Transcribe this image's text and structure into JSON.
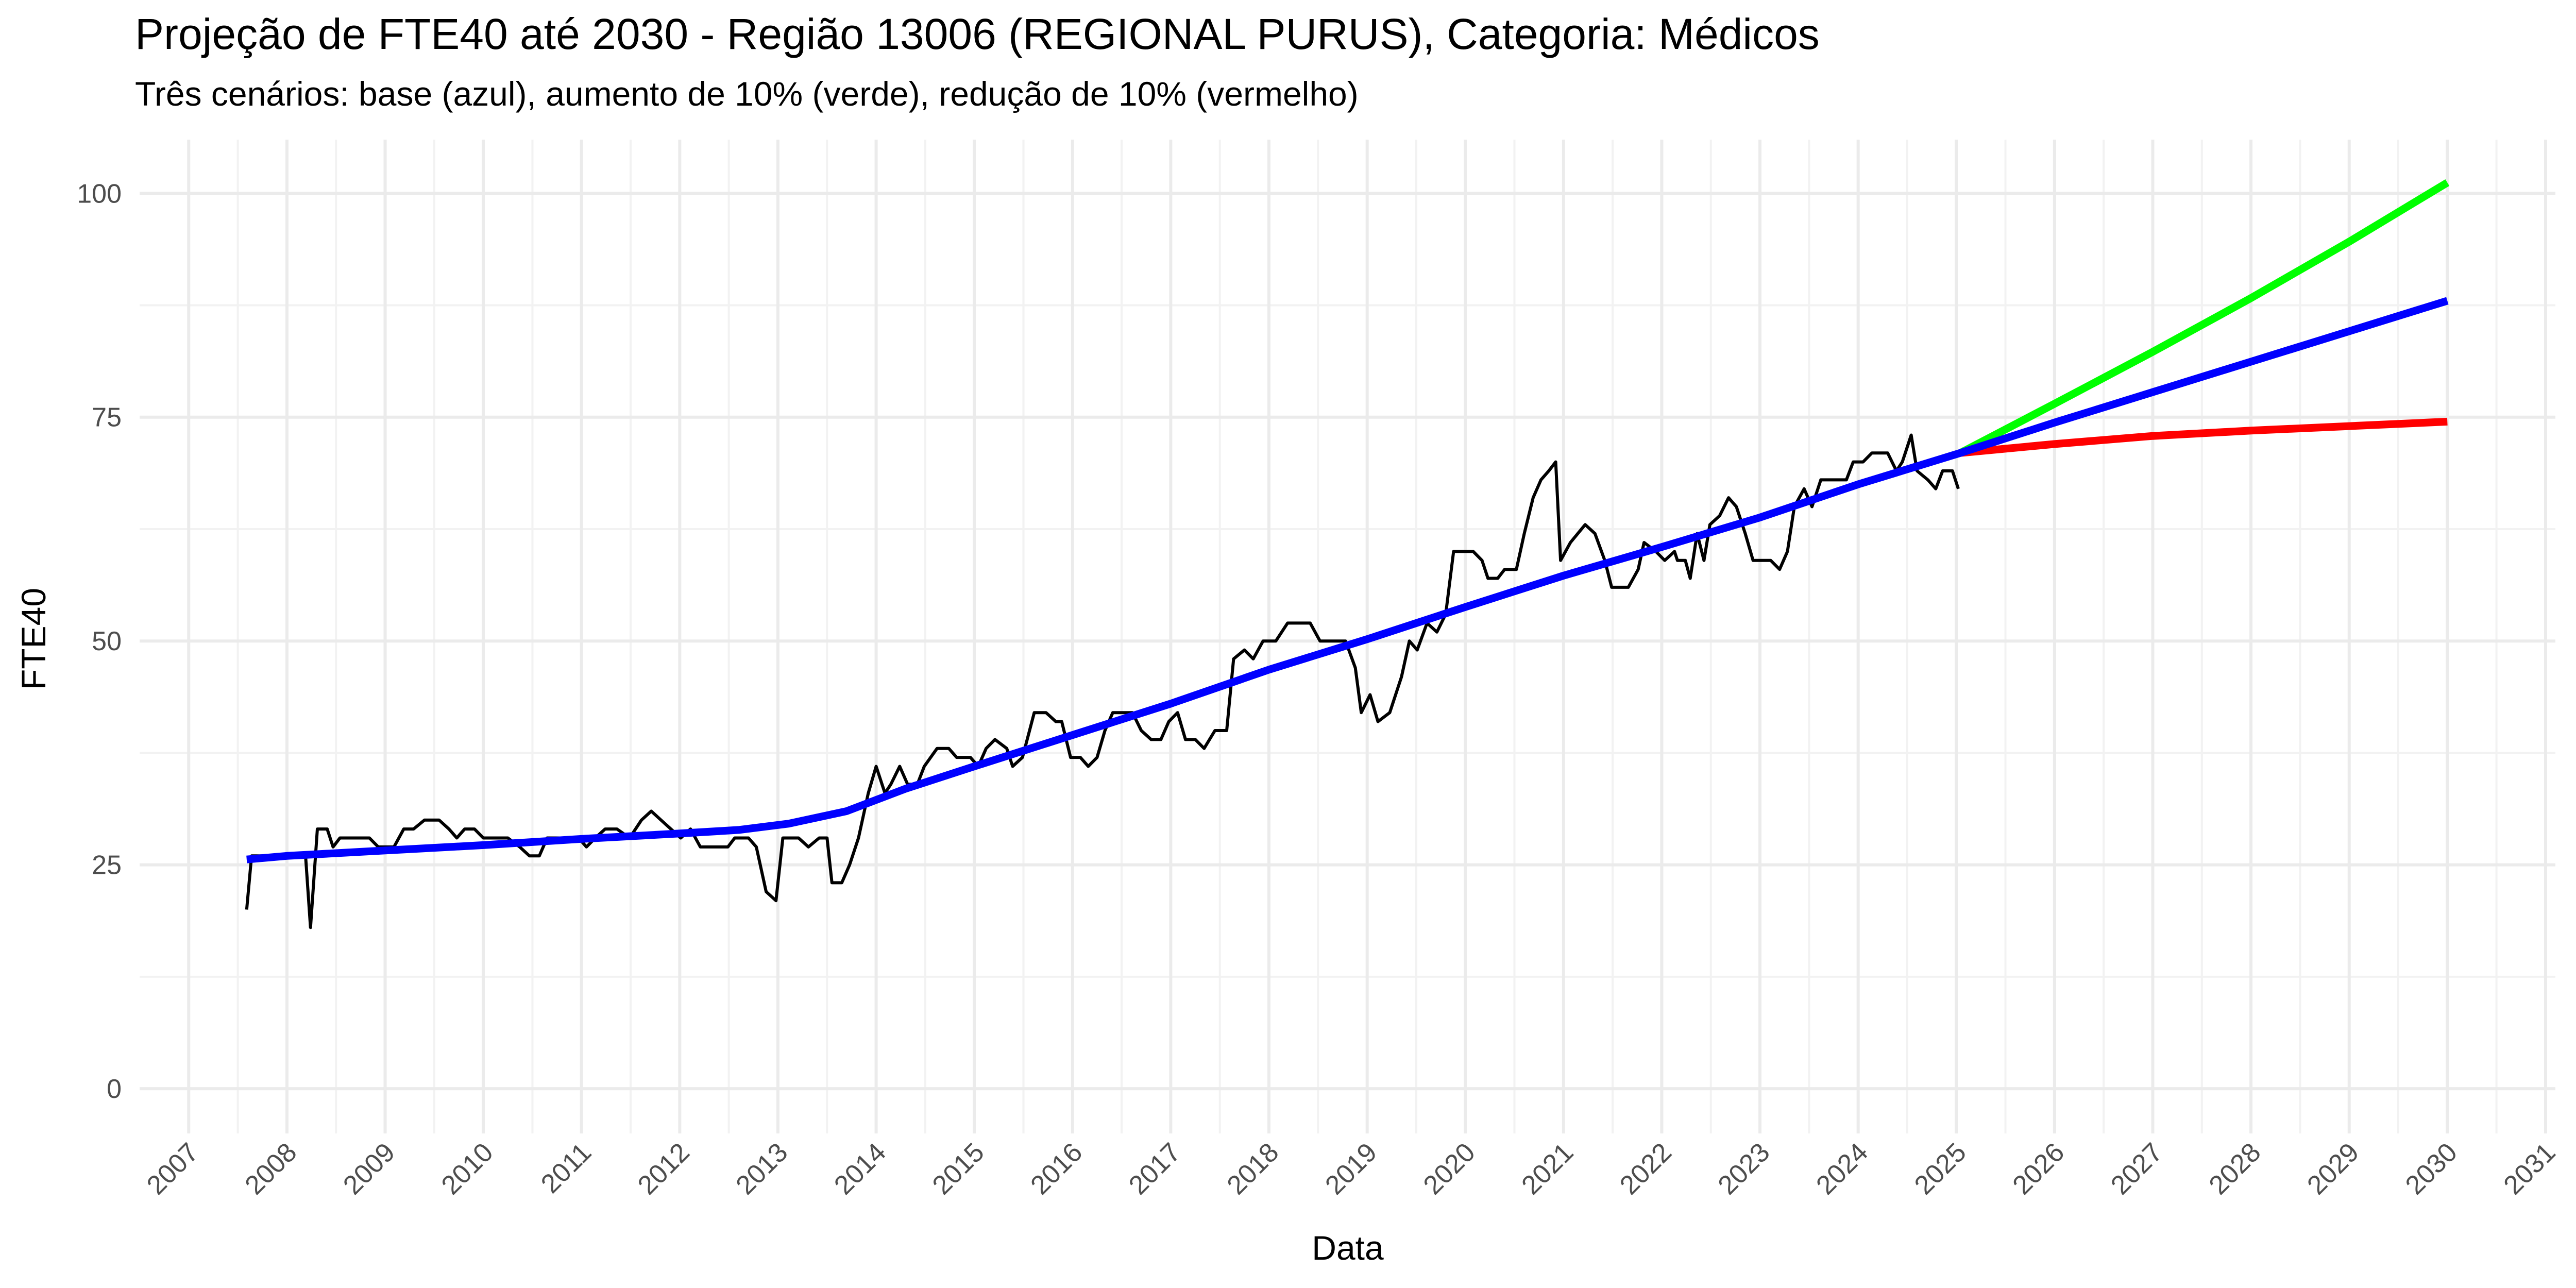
{
  "chart_data": {
    "type": "line",
    "title": "Projeção de FTE40 até 2030 - Região 13006 (REGIONAL PURUS), Categoria: Médicos",
    "subtitle": "Três cenários: base (azul), aumento de 10% (verde), redução de 10% (vermelho)",
    "x_label": "Data",
    "y_label": "FTE40",
    "xlim": [
      2006.5,
      2031.1
    ],
    "xticks": [
      2007,
      2008,
      2009,
      2010,
      2011,
      2012,
      2013,
      2014,
      2015,
      2016,
      2017,
      2018,
      2019,
      2020,
      2021,
      2022,
      2023,
      2024,
      2025,
      2026,
      2027,
      2028,
      2029,
      2030,
      2031
    ],
    "ylim": [
      -5,
      106
    ],
    "yticks": [
      0,
      25,
      50,
      75,
      100
    ],
    "grid": true,
    "series": [
      {
        "color": "#000000",
        "x": [
          2007.59,
          2007.64,
          2008.19,
          2008.24,
          2008.31,
          2008.41,
          2008.47,
          2008.54,
          2008.84,
          2008.93,
          2009.09,
          2009.19,
          2009.29,
          2009.4,
          2009.55,
          2009.65,
          2009.73,
          2009.81,
          2009.91,
          2010.0,
          2010.25,
          2010.37,
          2010.47,
          2010.57,
          2010.65,
          2010.97,
          2011.05,
          2011.14,
          2011.24,
          2011.36,
          2011.49,
          2011.61,
          2011.71,
          2011.81,
          2011.91,
          2012.01,
          2012.11,
          2012.21,
          2012.49,
          2012.56,
          2012.7,
          2012.78,
          2012.88,
          2012.98,
          2013.05,
          2013.21,
          2013.31,
          2013.42,
          2013.5,
          2013.55,
          2013.65,
          2013.73,
          2013.82,
          2013.92,
          2014.0,
          2014.09,
          2014.15,
          2014.24,
          2014.32,
          2014.42,
          2014.49,
          2014.62,
          2014.74,
          2014.82,
          2014.96,
          2015.04,
          2015.12,
          2015.21,
          2015.33,
          2015.39,
          2015.49,
          2015.61,
          2015.73,
          2015.83,
          2015.89,
          2015.98,
          2016.08,
          2016.16,
          2016.25,
          2016.33,
          2016.41,
          2016.61,
          2016.7,
          2016.8,
          2016.9,
          2016.98,
          2017.07,
          2017.15,
          2017.25,
          2017.34,
          2017.45,
          2017.57,
          2017.64,
          2017.75,
          2017.84,
          2017.94,
          2018.07,
          2018.19,
          2018.42,
          2018.52,
          2018.78,
          2018.88,
          2018.94,
          2019.03,
          2019.11,
          2019.23,
          2019.35,
          2019.43,
          2019.51,
          2019.61,
          2019.71,
          2019.8,
          2019.88,
          2020.08,
          2020.17,
          2020.23,
          2020.33,
          2020.4,
          2020.52,
          2020.6,
          2020.69,
          2020.77,
          2020.85,
          2020.92,
          2020.97,
          2021.07,
          2021.22,
          2021.32,
          2021.42,
          2021.49,
          2021.66,
          2021.76,
          2021.82,
          2021.94,
          2022.03,
          2022.13,
          2022.16,
          2022.24,
          2022.29,
          2022.36,
          2022.43,
          2022.49,
          2022.59,
          2022.68,
          2022.76,
          2022.85,
          2022.93,
          2023.11,
          2023.2,
          2023.28,
          2023.35,
          2023.45,
          2023.53,
          2023.62,
          2023.88,
          2023.95,
          2024.05,
          2024.14,
          2024.3,
          2024.39,
          2024.45,
          2024.54,
          2024.6,
          2024.71,
          2024.79,
          2024.86,
          2024.96,
          2025.02
        ],
        "values": [
          20,
          26,
          26,
          18,
          29,
          29,
          27,
          28,
          28,
          27,
          27,
          29,
          29,
          30,
          30,
          29,
          28,
          29,
          29,
          28,
          28,
          27,
          26,
          26,
          28,
          28,
          27,
          28,
          29,
          29,
          28,
          30,
          31,
          30,
          29,
          28,
          29,
          27,
          27,
          28,
          28,
          27,
          22,
          21,
          28,
          28,
          27,
          28,
          28,
          23,
          23,
          25,
          28,
          33,
          36,
          33,
          34,
          36,
          34,
          34,
          36,
          38,
          38,
          37,
          37,
          36,
          38,
          39,
          38,
          36,
          37,
          42,
          42,
          41,
          41,
          37,
          37,
          36,
          37,
          40,
          42,
          42,
          40,
          39,
          39,
          41,
          42,
          39,
          39,
          38,
          40,
          40,
          48,
          49,
          48,
          50,
          50,
          52,
          52,
          50,
          50,
          47,
          42,
          44,
          41,
          42,
          46,
          50,
          49,
          52,
          51,
          53,
          60,
          60,
          59,
          57,
          57,
          58,
          58,
          62,
          66,
          68,
          69,
          70,
          59,
          61,
          63,
          62,
          59,
          56,
          56,
          58,
          61,
          60,
          59,
          60,
          59,
          59,
          57,
          62,
          59,
          63,
          64,
          66,
          65,
          62,
          59,
          59,
          58,
          60,
          65,
          67,
          65,
          68,
          68,
          70,
          70,
          71,
          71,
          69,
          70,
          73,
          69,
          68,
          67,
          69,
          69,
          67
        ]
      },
      {
        "color": "#00ff00",
        "x": [
          2025.04,
          2026,
          2027,
          2028,
          2029,
          2030
        ],
        "values": [
          71,
          76.5,
          82.3,
          88.3,
          94.6,
          101.2
        ]
      },
      {
        "color": "#ff0000",
        "x": [
          2025.04,
          2026,
          2027,
          2028,
          2029,
          2030
        ],
        "values": [
          71,
          72.0,
          72.9,
          73.5,
          74.0,
          74.5
        ]
      },
      {
        "color": "#0000ff",
        "x": [
          2007.59,
          2008,
          2009,
          2010,
          2011,
          2012,
          2012.6,
          2013.11,
          2013.7,
          2014.3,
          2015,
          2016,
          2017,
          2018,
          2019,
          2020,
          2021,
          2022,
          2023,
          2024,
          2025.04,
          2026,
          2027,
          2028,
          2029,
          2030
        ],
        "values": [
          25.6,
          26,
          26.6,
          27.2,
          27.9,
          28.5,
          28.9,
          29.6,
          31,
          33.5,
          36,
          39.5,
          43,
          46.8,
          50.2,
          53.8,
          57.3,
          60.5,
          63.8,
          67.5,
          71,
          74.4,
          77.8,
          81.2,
          84.6,
          88
        ]
      }
    ]
  }
}
